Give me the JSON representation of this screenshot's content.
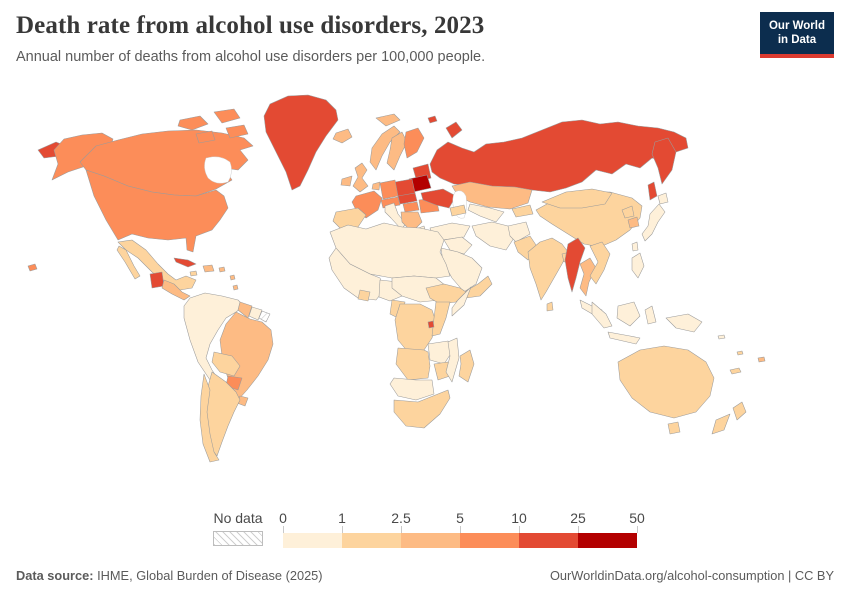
{
  "header": {
    "title": "Death rate from alcohol use disorders, 2023",
    "subtitle": "Annual number of deaths from alcohol use disorders per 100,000 people.",
    "logo": {
      "line1": "Our World",
      "line2": "in Data"
    }
  },
  "legend": {
    "no_data_label": "No data",
    "ticks": [
      "0",
      "1",
      "2.5",
      "5",
      "10",
      "25",
      "50"
    ]
  },
  "footer": {
    "source_label": "Data source:",
    "source_text": " IHME, Global Burden of Disease (2025)",
    "right_text": "OurWorldinData.org/alcohol-consumption | CC BY"
  },
  "chart_data": {
    "type": "choropleth",
    "title": "Death rate from alcohol use disorders, 2023",
    "unit": "deaths per 100,000 people",
    "legend_position": "bottom",
    "color_scale": {
      "no_data_color": "#ffffff",
      "bins": [
        {
          "range": "0-1",
          "color": "#fef0d9"
        },
        {
          "range": "1-2.5",
          "color": "#fdd49e"
        },
        {
          "range": "2.5-5",
          "color": "#fdbb84"
        },
        {
          "range": "5-10",
          "color": "#fc8d59"
        },
        {
          "range": "10-25",
          "color": "#e34a33"
        },
        {
          "range": "25-50",
          "color": "#b30000"
        }
      ]
    },
    "regions": [
      {
        "id": "russia-east",
        "name": "Russia (Chukotka)",
        "bin": 4
      },
      {
        "id": "alaska",
        "name": "United States (Alaska)",
        "bin": 3
      },
      {
        "id": "canada",
        "name": "Canada",
        "bin": 3
      },
      {
        "id": "arctic-islands",
        "name": "Canada (Arctic islands)",
        "bin": 3
      },
      {
        "id": "greenland",
        "name": "Greenland",
        "bin": 4
      },
      {
        "id": "iceland",
        "name": "Iceland",
        "bin": 2
      },
      {
        "id": "usa",
        "name": "United States",
        "bin": 3
      },
      {
        "id": "hawaii",
        "name": "United States (Hawaii)",
        "bin": 3
      },
      {
        "id": "mexico",
        "name": "Mexico",
        "bin": 1
      },
      {
        "id": "guatemala",
        "name": "Guatemala",
        "bin": 4
      },
      {
        "id": "central-america",
        "name": "Central America",
        "bin": 2
      },
      {
        "id": "cuba",
        "name": "Cuba",
        "bin": 4
      },
      {
        "id": "hispaniola",
        "name": "Haiti / Dominican Republic",
        "bin": 2
      },
      {
        "id": "jamaica",
        "name": "Jamaica",
        "bin": 1
      },
      {
        "id": "puerto-rico",
        "name": "Puerto Rico",
        "bin": 2
      },
      {
        "id": "lesser-antilles",
        "name": "Lesser Antilles",
        "bin": 2
      },
      {
        "id": "andean-states",
        "name": "Colombia / Venezuela / Ecuador / Peru",
        "bin": 0
      },
      {
        "id": "guyana",
        "name": "Guyana",
        "bin": 2
      },
      {
        "id": "suriname",
        "name": "Suriname",
        "bin": 0
      },
      {
        "id": "french-guiana",
        "name": "French Guiana",
        "bin": -1
      },
      {
        "id": "brazil",
        "name": "Brazil",
        "bin": 2
      },
      {
        "id": "bolivia",
        "name": "Bolivia",
        "bin": 1
      },
      {
        "id": "paraguay",
        "name": "Paraguay",
        "bin": 3
      },
      {
        "id": "uruguay",
        "name": "Uruguay",
        "bin": 2
      },
      {
        "id": "argentina",
        "name": "Argentina",
        "bin": 1
      },
      {
        "id": "chile",
        "name": "Chile",
        "bin": 1
      },
      {
        "id": "ireland",
        "name": "Ireland",
        "bin": 2
      },
      {
        "id": "united-kingdom",
        "name": "United Kingdom",
        "bin": 2
      },
      {
        "id": "norway",
        "name": "Norway",
        "bin": 2
      },
      {
        "id": "sweden",
        "name": "Sweden",
        "bin": 2
      },
      {
        "id": "finland",
        "name": "Finland",
        "bin": 3
      },
      {
        "id": "denmark",
        "name": "Denmark",
        "bin": 3
      },
      {
        "id": "baltic-states",
        "name": "Baltic states",
        "bin": 4
      },
      {
        "id": "belarus",
        "name": "Belarus",
        "bin": 5
      },
      {
        "id": "poland",
        "name": "Poland",
        "bin": 4
      },
      {
        "id": "germany",
        "name": "Germany",
        "bin": 3
      },
      {
        "id": "benelux",
        "name": "Benelux",
        "bin": 2
      },
      {
        "id": "france",
        "name": "France",
        "bin": 3
      },
      {
        "id": "iberia",
        "name": "Spain / Portugal",
        "bin": 1
      },
      {
        "id": "italy",
        "name": "Italy",
        "bin": 0
      },
      {
        "id": "alpine",
        "name": "Switzerland / Austria",
        "bin": 3
      },
      {
        "id": "czechia-slovakia",
        "name": "Czechia / Slovakia",
        "bin": 4
      },
      {
        "id": "hungary",
        "name": "Hungary",
        "bin": 3
      },
      {
        "id": "romania",
        "name": "Romania",
        "bin": 3
      },
      {
        "id": "ukraine",
        "name": "Ukraine",
        "bin": 4
      },
      {
        "id": "balkans",
        "name": "Balkans",
        "bin": 2
      },
      {
        "id": "greece",
        "name": "Greece",
        "bin": 0
      },
      {
        "id": "russia",
        "name": "Russia",
        "bin": 4
      },
      {
        "id": "svalbard",
        "name": "Svalbard",
        "bin": 2
      },
      {
        "id": "novaya-zemlya",
        "name": "Russia (Novaya Zemlya)",
        "bin": 4
      },
      {
        "id": "franz-josef",
        "name": "Russia (Franz Josef Land)",
        "bin": 4
      },
      {
        "id": "kamchatka",
        "name": "Russia (Kamchatka)",
        "bin": 4
      },
      {
        "id": "sakhalin",
        "name": "Russia (Sakhalin)",
        "bin": 4
      },
      {
        "id": "kazakhstan",
        "name": "Kazakhstan",
        "bin": 2
      },
      {
        "id": "uzbekistan-turkmenistan",
        "name": "Uzbekistan / Turkmenistan",
        "bin": 0
      },
      {
        "id": "kyrgyzstan-tajikistan",
        "name": "Kyrgyzstan / Tajikistan",
        "bin": 1
      },
      {
        "id": "caucasus",
        "name": "Caucasus",
        "bin": 1
      },
      {
        "id": "turkey",
        "name": "Turkey",
        "bin": 0
      },
      {
        "id": "levant-iraq",
        "name": "Levant / Iraq",
        "bin": 0
      },
      {
        "id": "saudi-arabia",
        "name": "Saudi Arabia",
        "bin": 0
      },
      {
        "id": "yemen-oman",
        "name": "Yemen / Oman",
        "bin": 1
      },
      {
        "id": "iran",
        "name": "Iran",
        "bin": 0
      },
      {
        "id": "afghanistan",
        "name": "Afghanistan",
        "bin": 0
      },
      {
        "id": "pakistan",
        "name": "Pakistan",
        "bin": 1
      },
      {
        "id": "india",
        "name": "India",
        "bin": 1
      },
      {
        "id": "sri-lanka",
        "name": "Sri Lanka",
        "bin": 1
      },
      {
        "id": "bangladesh",
        "name": "Bangladesh",
        "bin": 1
      },
      {
        "id": "china",
        "name": "China",
        "bin": 1
      },
      {
        "id": "mongolia",
        "name": "Mongolia",
        "bin": 1
      },
      {
        "id": "north-korea",
        "name": "North Korea",
        "bin": 1
      },
      {
        "id": "south-korea",
        "name": "South Korea",
        "bin": 2
      },
      {
        "id": "japan",
        "name": "Japan",
        "bin": 0
      },
      {
        "id": "taiwan",
        "name": "Taiwan",
        "bin": 0
      },
      {
        "id": "myanmar",
        "name": "Myanmar",
        "bin": 4
      },
      {
        "id": "thailand",
        "name": "Thailand",
        "bin": 2
      },
      {
        "id": "vietnam-laos",
        "name": "Vietnam / Laos / Cambodia",
        "bin": 1
      },
      {
        "id": "malaysia",
        "name": "Malaysia",
        "bin": 0
      },
      {
        "id": "philippines",
        "name": "Philippines",
        "bin": 0
      },
      {
        "id": "sumatra",
        "name": "Indonesia (Sumatra)",
        "bin": 0
      },
      {
        "id": "borneo",
        "name": "Indonesia (Borneo)",
        "bin": 0
      },
      {
        "id": "java",
        "name": "Indonesia (Java)",
        "bin": 0
      },
      {
        "id": "sulawesi",
        "name": "Indonesia (Sulawesi)",
        "bin": 0
      },
      {
        "id": "new-guinea",
        "name": "Papua New Guinea",
        "bin": 0
      },
      {
        "id": "australia",
        "name": "Australia",
        "bin": 1
      },
      {
        "id": "tasmania",
        "name": "Australia (Tasmania)",
        "bin": 1
      },
      {
        "id": "new-zealand",
        "name": "New Zealand",
        "bin": 1
      },
      {
        "id": "fiji",
        "name": "Fiji",
        "bin": 2
      },
      {
        "id": "new-caledonia",
        "name": "New Caledonia",
        "bin": 1
      },
      {
        "id": "solomon-islands",
        "name": "Solomon Islands",
        "bin": 0
      },
      {
        "id": "vanuatu",
        "name": "Vanuatu",
        "bin": 1
      },
      {
        "id": "north-africa",
        "name": "North Africa / Sahara",
        "bin": 0
      },
      {
        "id": "west-africa",
        "name": "West Africa",
        "bin": 0
      },
      {
        "id": "ghana",
        "name": "Ghana",
        "bin": 1
      },
      {
        "id": "nigeria",
        "name": "Nigeria",
        "bin": 0
      },
      {
        "id": "cameroon-gabon",
        "name": "Cameroon / Gabon",
        "bin": 1
      },
      {
        "id": "sudan-chad",
        "name": "Sudan / Chad",
        "bin": 0
      },
      {
        "id": "ethiopia",
        "name": "Ethiopia",
        "bin": 1
      },
      {
        "id": "somalia",
        "name": "Somalia",
        "bin": 0
      },
      {
        "id": "dr-congo",
        "name": "Democratic Republic of Congo",
        "bin": 1
      },
      {
        "id": "kenya-tanzania",
        "name": "Kenya / Tanzania",
        "bin": 1
      },
      {
        "id": "rwanda-burundi",
        "name": "Rwanda / Burundi",
        "bin": 4
      },
      {
        "id": "angola",
        "name": "Angola",
        "bin": 1
      },
      {
        "id": "zambia",
        "name": "Zambia",
        "bin": 0
      },
      {
        "id": "zimbabwe",
        "name": "Zimbabwe",
        "bin": 1
      },
      {
        "id": "mozambique",
        "name": "Mozambique",
        "bin": 0
      },
      {
        "id": "namibia-botswana",
        "name": "Namibia / Botswana",
        "bin": 0
      },
      {
        "id": "south-africa",
        "name": "South Africa",
        "bin": 1
      },
      {
        "id": "madagascar",
        "name": "Madagascar",
        "bin": 1
      }
    ]
  }
}
